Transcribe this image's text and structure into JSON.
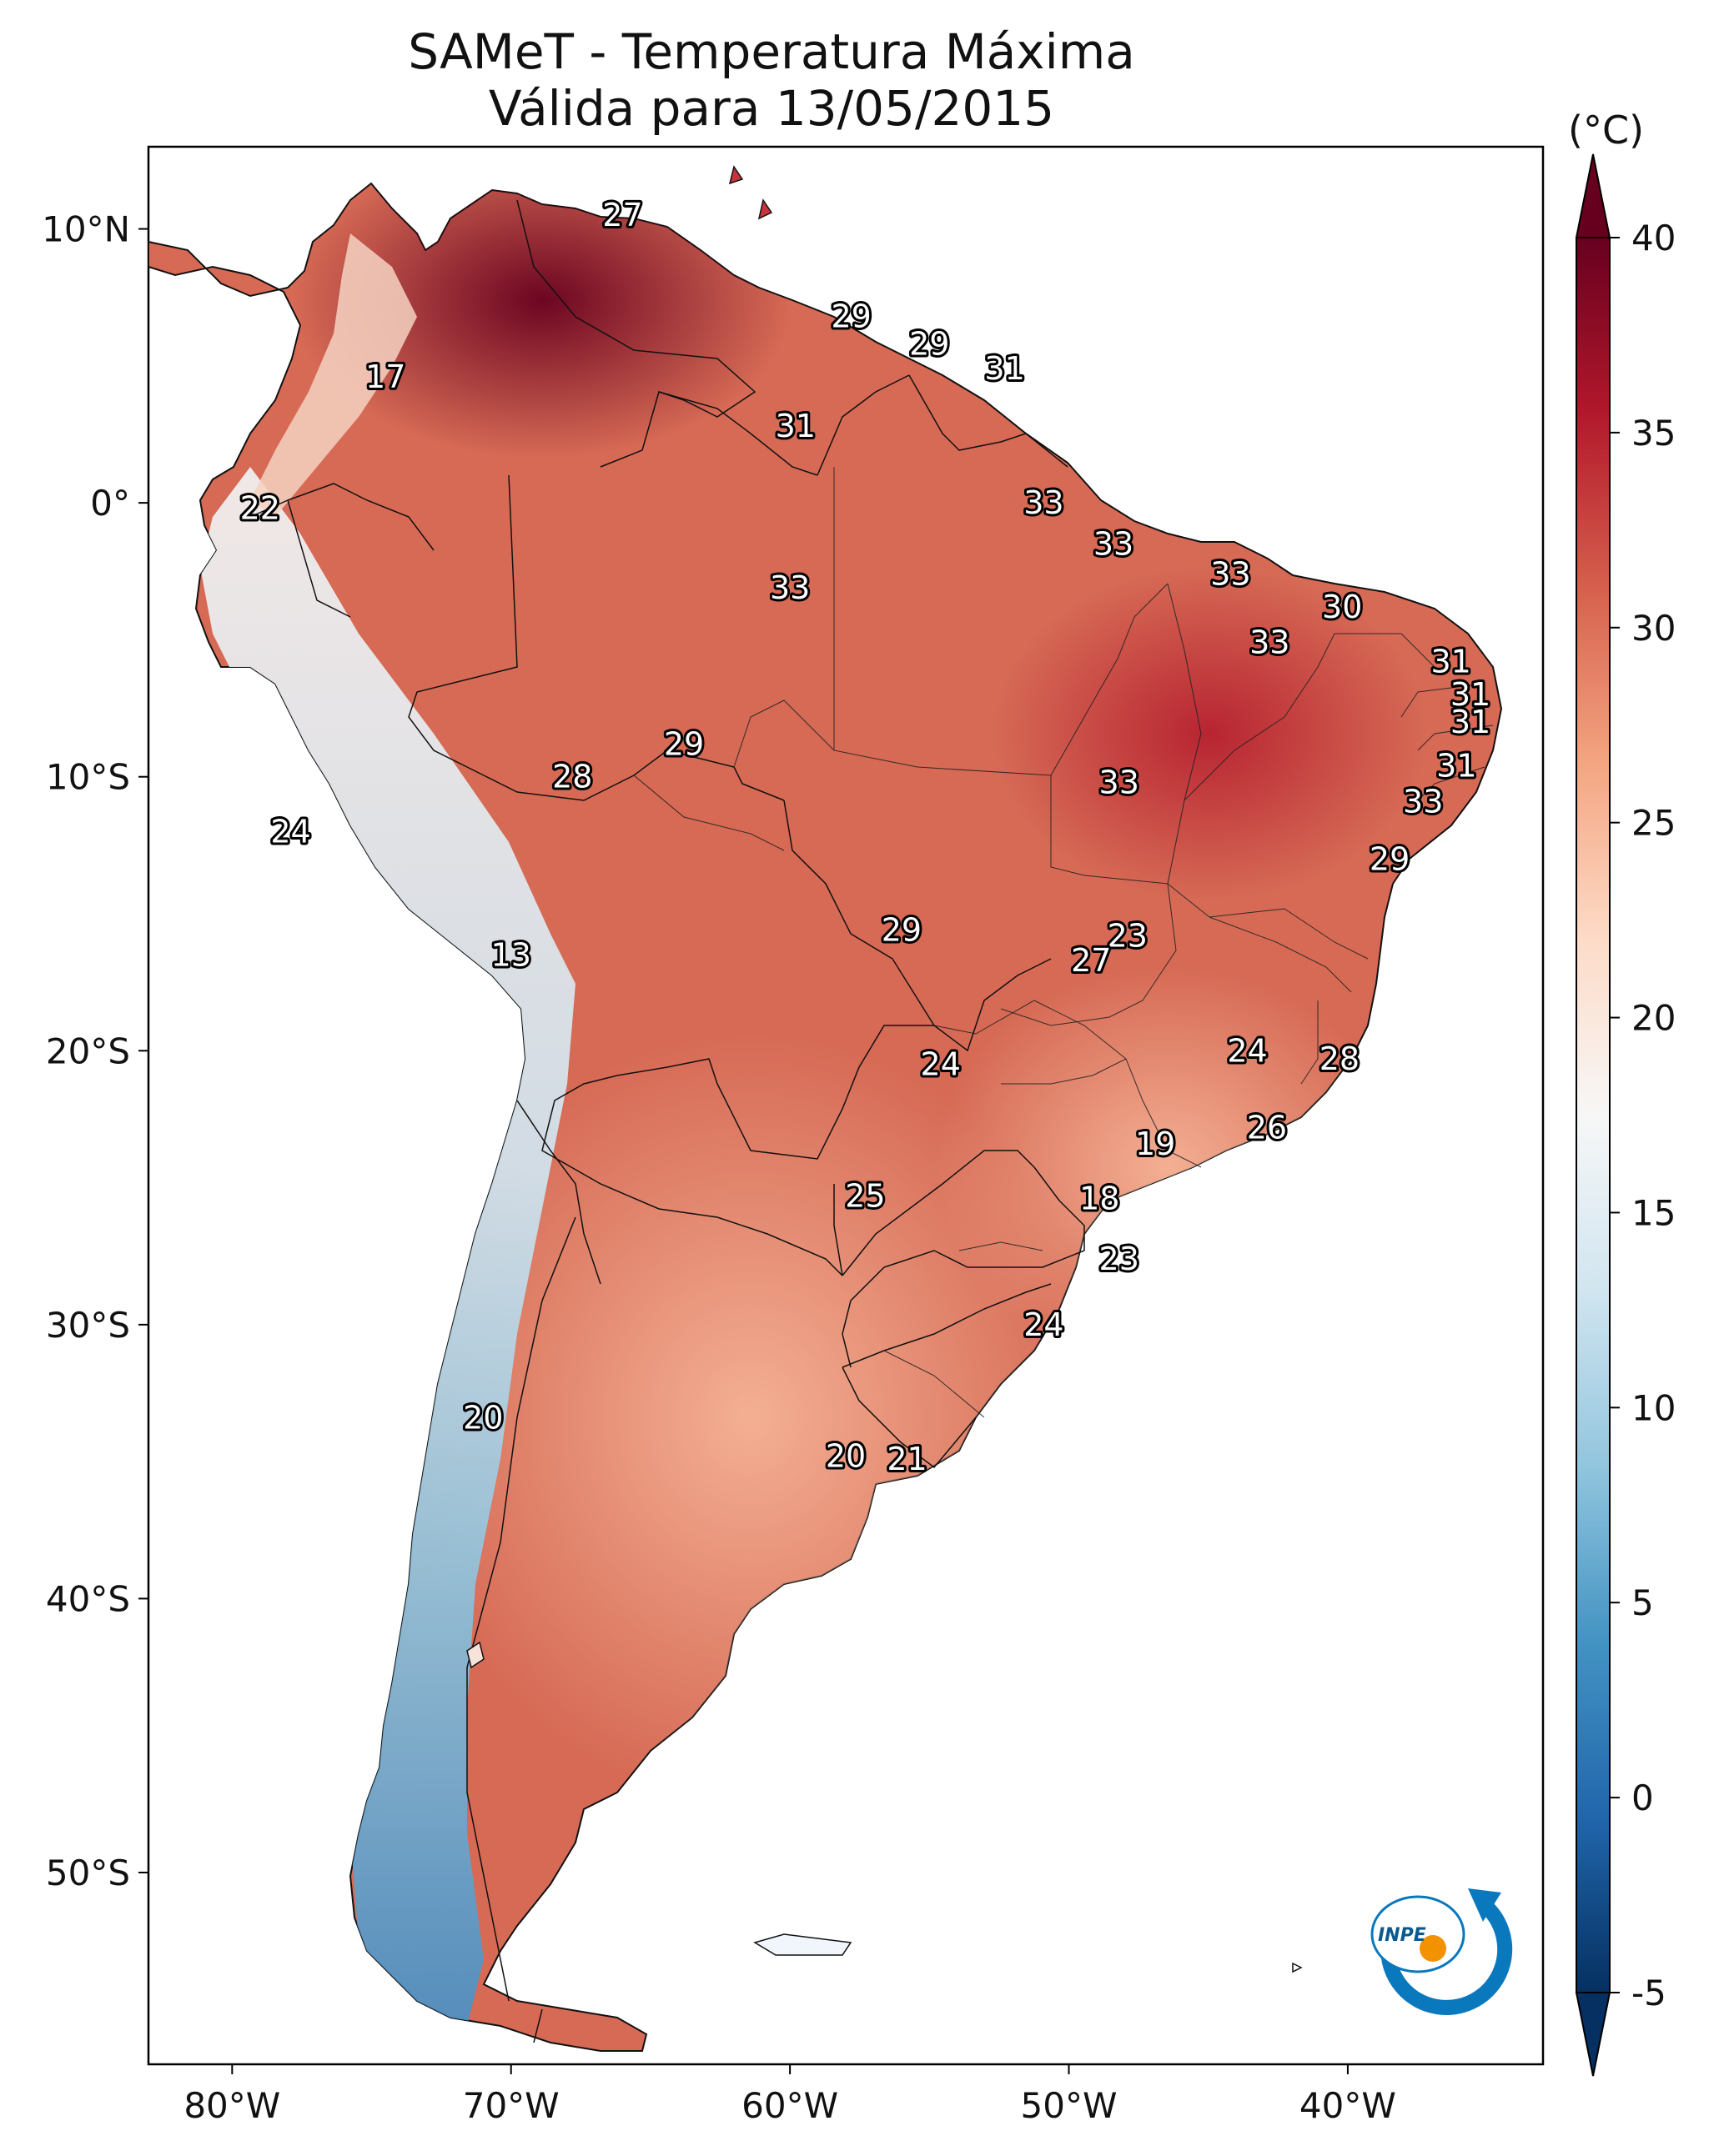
{
  "title": {
    "line1": "SAMeT - Temperatura Máxima",
    "line2": "Válida para 13/05/2015"
  },
  "map": {
    "lon_range": [
      -83,
      -33
    ],
    "lat_range": [
      -57,
      13
    ],
    "x_ticks": [
      {
        "lon": -80,
        "label": "80°W"
      },
      {
        "lon": -70,
        "label": "70°W"
      },
      {
        "lon": -60,
        "label": "60°W"
      },
      {
        "lon": -50,
        "label": "50°W"
      },
      {
        "lon": -40,
        "label": "40°W"
      }
    ],
    "y_ticks": [
      {
        "lat": 10,
        "label": "10°N"
      },
      {
        "lat": 0,
        "label": "0°"
      },
      {
        "lat": -10,
        "label": "10°S"
      },
      {
        "lat": -20,
        "label": "20°S"
      },
      {
        "lat": -30,
        "label": "30°S"
      },
      {
        "lat": -40,
        "label": "40°S"
      },
      {
        "lat": -50,
        "label": "50°S"
      }
    ],
    "stations": [
      {
        "lon": -66.0,
        "lat": 10.5,
        "value": "27"
      },
      {
        "lon": -74.5,
        "lat": 4.6,
        "value": "17"
      },
      {
        "lon": -79.0,
        "lat": -0.2,
        "value": "22"
      },
      {
        "lon": -57.8,
        "lat": 6.8,
        "value": "29"
      },
      {
        "lon": -55.0,
        "lat": 5.8,
        "value": "29"
      },
      {
        "lon": -52.3,
        "lat": 4.9,
        "value": "31"
      },
      {
        "lon": -59.8,
        "lat": 2.8,
        "value": "31"
      },
      {
        "lon": -50.9,
        "lat": 0.0,
        "value": "33"
      },
      {
        "lon": -48.4,
        "lat": -1.5,
        "value": "33"
      },
      {
        "lon": -44.2,
        "lat": -2.6,
        "value": "33"
      },
      {
        "lon": -40.2,
        "lat": -3.8,
        "value": "30"
      },
      {
        "lon": -60.0,
        "lat": -3.1,
        "value": "33"
      },
      {
        "lon": -42.8,
        "lat": -5.1,
        "value": "33"
      },
      {
        "lon": -36.3,
        "lat": -5.8,
        "value": "31"
      },
      {
        "lon": -35.6,
        "lat": -7.0,
        "value": "31"
      },
      {
        "lon": -35.6,
        "lat": -8.0,
        "value": "31"
      },
      {
        "lon": -36.1,
        "lat": -9.6,
        "value": "31"
      },
      {
        "lon": -37.3,
        "lat": -10.9,
        "value": "33"
      },
      {
        "lon": -48.2,
        "lat": -10.2,
        "value": "33"
      },
      {
        "lon": -63.8,
        "lat": -8.8,
        "value": "29"
      },
      {
        "lon": -67.8,
        "lat": -10.0,
        "value": "28"
      },
      {
        "lon": -77.9,
        "lat": -12.0,
        "value": "24"
      },
      {
        "lon": -38.5,
        "lat": -13.0,
        "value": "29"
      },
      {
        "lon": -70.0,
        "lat": -16.5,
        "value": "13"
      },
      {
        "lon": -56.0,
        "lat": -15.6,
        "value": "29"
      },
      {
        "lon": -47.9,
        "lat": -15.8,
        "value": "23"
      },
      {
        "lon": -49.2,
        "lat": -16.7,
        "value": "27"
      },
      {
        "lon": -54.6,
        "lat": -20.5,
        "value": "24"
      },
      {
        "lon": -43.6,
        "lat": -20.0,
        "value": "24"
      },
      {
        "lon": -40.3,
        "lat": -20.3,
        "value": "28"
      },
      {
        "lon": -42.9,
        "lat": -22.8,
        "value": "26"
      },
      {
        "lon": -46.9,
        "lat": -23.4,
        "value": "19"
      },
      {
        "lon": -48.9,
        "lat": -25.4,
        "value": "18"
      },
      {
        "lon": -57.3,
        "lat": -25.3,
        "value": "25"
      },
      {
        "lon": -48.2,
        "lat": -27.6,
        "value": "23"
      },
      {
        "lon": -50.9,
        "lat": -30.0,
        "value": "24"
      },
      {
        "lon": -71.0,
        "lat": -33.4,
        "value": "20"
      },
      {
        "lon": -58.0,
        "lat": -34.8,
        "value": "20"
      },
      {
        "lon": -55.8,
        "lat": -34.9,
        "value": "21"
      }
    ]
  },
  "colorbar": {
    "unit": "(°C)",
    "vmin": -5,
    "vmax": 40,
    "ticks": [
      {
        "value": 40,
        "label": "40"
      },
      {
        "value": 35,
        "label": "35"
      },
      {
        "value": 30,
        "label": "30"
      },
      {
        "value": 25,
        "label": "25"
      },
      {
        "value": 20,
        "label": "20"
      },
      {
        "value": 15,
        "label": "15"
      },
      {
        "value": 10,
        "label": "10"
      },
      {
        "value": 5,
        "label": "5"
      },
      {
        "value": 0,
        "label": "0"
      },
      {
        "value": -5,
        "label": "-5"
      }
    ],
    "colors": [
      "#053061",
      "#2166ac",
      "#4393c3",
      "#92c5de",
      "#d1e5f0",
      "#f7f7f7",
      "#fddbc7",
      "#f4a582",
      "#d6604d",
      "#b2182b",
      "#67001f"
    ]
  },
  "logo": {
    "text": "INPE",
    "colors": {
      "ring": "#0a78bd",
      "dot": "#f39200"
    }
  },
  "palette": {
    "land_default": "#d66a55",
    "ocean": "#ffffff",
    "border": "#111111"
  }
}
